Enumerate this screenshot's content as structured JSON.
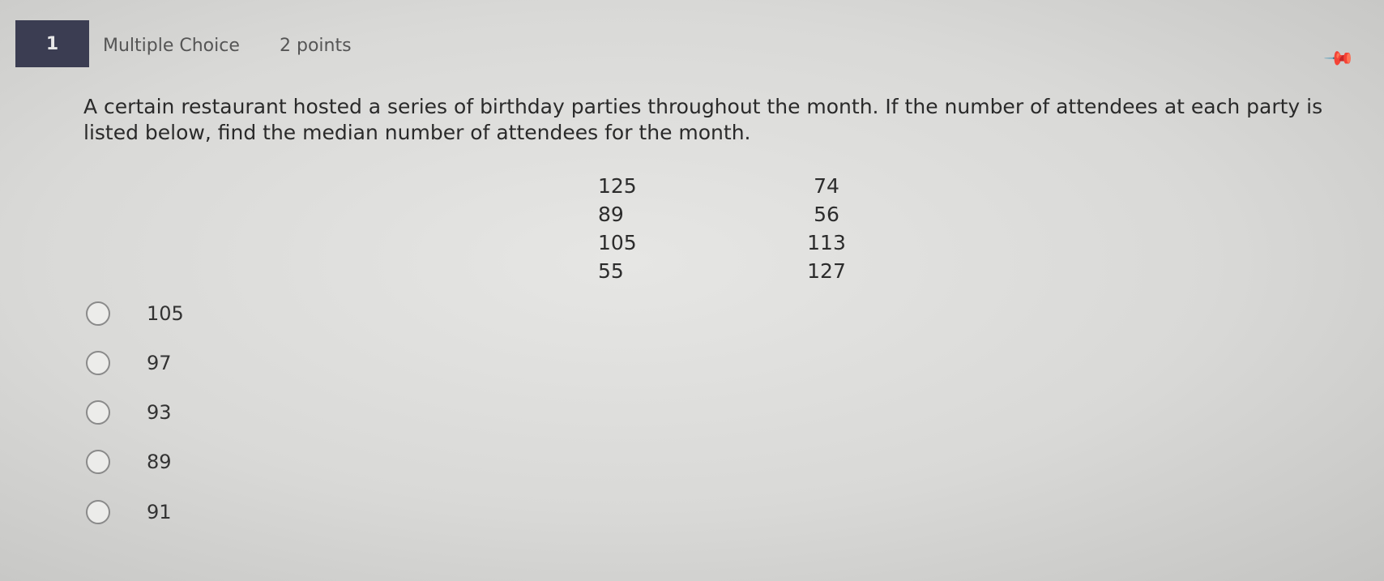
{
  "question": {
    "number": "1",
    "type": "Multiple Choice",
    "points": "2 points",
    "pin_icon": "pushpin-icon",
    "text": "A certain restaurant hosted a series of birthday parties throughout the month.  If the number of attendees at each party is listed below, find the median number of attendees for the month.",
    "data_column_1": [
      "125",
      "89",
      "105",
      "55"
    ],
    "data_column_2": [
      "74",
      "56",
      "113",
      "127"
    ],
    "options": [
      "105",
      "97",
      "93",
      "89",
      "91"
    ]
  }
}
